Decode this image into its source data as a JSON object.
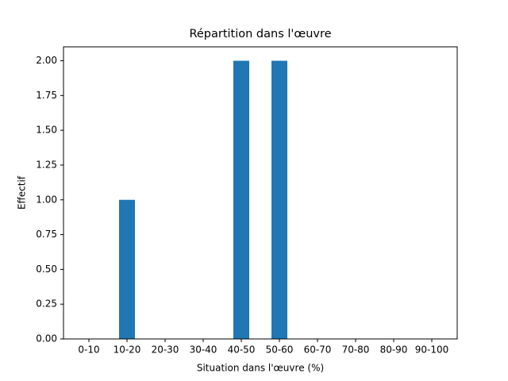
{
  "chart_data": {
    "type": "bar",
    "title": "Répartition dans l'œuvre",
    "xlabel": "Situation dans l'œuvre (%)",
    "ylabel": "Effectif",
    "categories": [
      "0-10",
      "10-20",
      "20-30",
      "30-40",
      "40-50",
      "50-60",
      "60-70",
      "70-80",
      "80-90",
      "90-100"
    ],
    "values": [
      0,
      1,
      0,
      0,
      2,
      2,
      0,
      0,
      0,
      0
    ],
    "color": "#1f77b4",
    "ylim": [
      0,
      2.1
    ],
    "yticks": [
      {
        "value": 0,
        "label": "0.00"
      },
      {
        "value": 0.25,
        "label": "0.25"
      },
      {
        "value": 0.5,
        "label": "0.50"
      },
      {
        "value": 0.75,
        "label": "0.75"
      },
      {
        "value": 1,
        "label": "1.00"
      },
      {
        "value": 1.25,
        "label": "1.25"
      },
      {
        "value": 1.5,
        "label": "1.50"
      },
      {
        "value": 1.75,
        "label": "1.75"
      },
      {
        "value": 2,
        "label": "2.00"
      }
    ],
    "grid": false
  }
}
